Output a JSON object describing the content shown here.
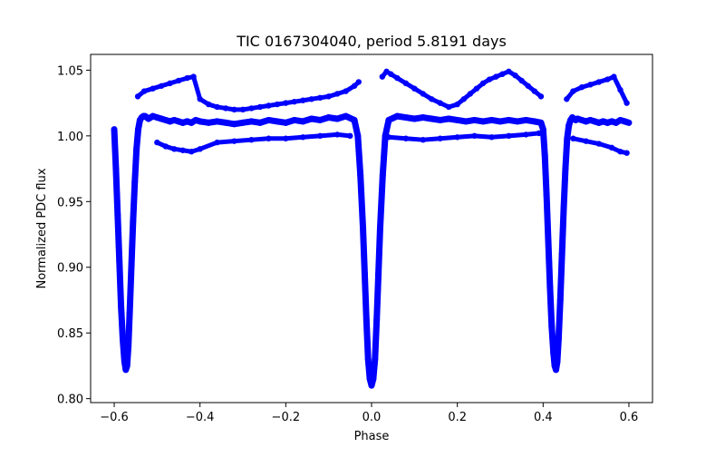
{
  "chart_data": {
    "type": "scatter",
    "title": "TIC 0167304040, period 5.8191 days",
    "xlabel": "Phase",
    "ylabel": "Normalized PDC flux",
    "xlim": [
      -0.655,
      0.655
    ],
    "ylim": [
      0.797,
      1.062
    ],
    "xticks": [
      -0.6,
      -0.4,
      -0.2,
      0.0,
      0.2,
      0.4,
      0.6
    ],
    "xtick_labels": [
      "−0.6",
      "−0.4",
      "−0.2",
      "0.0",
      "0.2",
      "0.4",
      "0.6"
    ],
    "yticks": [
      0.8,
      0.85,
      0.9,
      0.95,
      1.0,
      1.05
    ],
    "ytick_labels": [
      "0.80",
      "0.85",
      "0.90",
      "0.95",
      "1.00",
      "1.05"
    ],
    "grid": false,
    "marker_color": "#0000ff",
    "series": [
      {
        "x": [
          -0.6,
          -0.596,
          -0.592,
          -0.588,
          -0.584,
          -0.58,
          -0.576,
          -0.573,
          -0.57,
          -0.567,
          -0.564,
          -0.56,
          -0.556,
          -0.552,
          -0.548,
          -0.544,
          -0.54,
          -0.536,
          -0.532,
          -0.528,
          -0.524,
          -0.52,
          -0.51,
          -0.5,
          -0.49,
          -0.48,
          -0.47,
          -0.46,
          -0.45,
          -0.44,
          -0.43,
          -0.42,
          -0.41,
          -0.4,
          -0.38,
          -0.36,
          -0.34,
          -0.32,
          -0.3,
          -0.28,
          -0.26,
          -0.24,
          -0.22,
          -0.2,
          -0.18,
          -0.16,
          -0.14,
          -0.12,
          -0.1,
          -0.08,
          -0.06,
          -0.04,
          -0.032,
          -0.026,
          -0.02,
          -0.016,
          -0.012,
          -0.008,
          -0.004,
          0.0,
          0.004,
          0.008,
          0.012,
          0.016,
          0.02,
          0.026,
          0.032,
          0.04,
          0.06,
          0.08,
          0.1,
          0.12,
          0.14,
          0.16,
          0.18,
          0.2,
          0.22,
          0.24,
          0.26,
          0.28,
          0.3,
          0.32,
          0.34,
          0.36,
          0.38,
          0.395,
          0.4,
          0.404,
          0.408,
          0.412,
          0.416,
          0.42,
          0.424,
          0.427,
          0.43,
          0.433,
          0.436,
          0.44,
          0.444,
          0.448,
          0.452,
          0.456,
          0.46,
          0.464,
          0.468,
          0.472,
          0.476,
          0.48,
          0.49,
          0.5,
          0.51,
          0.52,
          0.53,
          0.54,
          0.55,
          0.56,
          0.57,
          0.58,
          0.59,
          0.6
        ],
        "y": [
          1.005,
          0.975,
          0.94,
          0.905,
          0.87,
          0.845,
          0.828,
          0.822,
          0.825,
          0.84,
          0.865,
          0.9,
          0.935,
          0.965,
          0.99,
          1.005,
          1.012,
          1.014,
          1.015,
          1.015,
          1.014,
          1.013,
          1.015,
          1.014,
          1.013,
          1.012,
          1.011,
          1.012,
          1.011,
          1.01,
          1.011,
          1.01,
          1.012,
          1.011,
          1.01,
          1.011,
          1.01,
          1.009,
          1.01,
          1.011,
          1.01,
          1.012,
          1.011,
          1.01,
          1.012,
          1.011,
          1.013,
          1.012,
          1.014,
          1.013,
          1.015,
          1.012,
          1.0,
          0.97,
          0.93,
          0.895,
          0.86,
          0.83,
          0.815,
          0.81,
          0.815,
          0.83,
          0.86,
          0.895,
          0.93,
          0.97,
          1.0,
          1.012,
          1.015,
          1.014,
          1.013,
          1.014,
          1.013,
          1.012,
          1.013,
          1.012,
          1.011,
          1.012,
          1.011,
          1.012,
          1.011,
          1.012,
          1.011,
          1.012,
          1.011,
          1.01,
          1.005,
          0.985,
          0.955,
          0.92,
          0.885,
          0.855,
          0.835,
          0.825,
          0.822,
          0.828,
          0.845,
          0.875,
          0.91,
          0.945,
          0.975,
          0.998,
          1.008,
          1.012,
          1.014,
          1.013,
          1.012,
          1.013,
          1.012,
          1.011,
          1.012,
          1.011,
          1.01,
          1.011,
          1.01,
          1.011,
          1.01,
          1.012,
          1.011,
          1.01
        ]
      },
      {
        "x": [
          -0.545,
          -0.53,
          -0.51,
          -0.49,
          -0.47,
          -0.45,
          -0.43,
          -0.415,
          -0.4,
          -0.38,
          -0.36,
          -0.34,
          -0.32,
          -0.3,
          -0.28,
          -0.26,
          -0.24,
          -0.22,
          -0.2,
          -0.18,
          -0.16,
          -0.14,
          -0.12,
          -0.1,
          -0.08,
          -0.06,
          -0.04,
          -0.03
        ],
        "y": [
          1.03,
          1.034,
          1.036,
          1.038,
          1.04,
          1.042,
          1.044,
          1.045,
          1.028,
          1.024,
          1.022,
          1.021,
          1.02,
          1.02,
          1.021,
          1.022,
          1.023,
          1.024,
          1.025,
          1.026,
          1.027,
          1.028,
          1.029,
          1.03,
          1.032,
          1.034,
          1.038,
          1.041
        ]
      },
      {
        "x": [
          0.025,
          0.035,
          0.045,
          0.06,
          0.08,
          0.1,
          0.12,
          0.14,
          0.16,
          0.18,
          0.2,
          0.215,
          0.23,
          0.245,
          0.26,
          0.275,
          0.29,
          0.305,
          0.32,
          0.335,
          0.35,
          0.365,
          0.38,
          0.395
        ],
        "y": [
          1.045,
          1.049,
          1.047,
          1.044,
          1.04,
          1.036,
          1.032,
          1.028,
          1.025,
          1.022,
          1.024,
          1.028,
          1.032,
          1.036,
          1.04,
          1.043,
          1.045,
          1.047,
          1.049,
          1.046,
          1.042,
          1.038,
          1.034,
          1.03
        ]
      },
      {
        "x": [
          0.455,
          0.47,
          0.49,
          0.51,
          0.53,
          0.55,
          0.565,
          0.58,
          0.595
        ],
        "y": [
          1.028,
          1.034,
          1.037,
          1.039,
          1.041,
          1.043,
          1.045,
          1.035,
          1.025
        ]
      },
      {
        "x": [
          -0.5,
          -0.48,
          -0.46,
          -0.44,
          -0.42,
          -0.4,
          -0.36,
          -0.32,
          -0.28,
          -0.24,
          -0.2,
          -0.16,
          -0.12,
          -0.08,
          -0.05
        ],
        "y": [
          0.995,
          0.992,
          0.99,
          0.989,
          0.988,
          0.99,
          0.995,
          0.996,
          0.997,
          0.998,
          0.998,
          0.999,
          1.0,
          1.001,
          1.0
        ]
      },
      {
        "x": [
          0.04,
          0.08,
          0.12,
          0.16,
          0.2,
          0.24,
          0.28,
          0.32,
          0.36,
          0.39
        ],
        "y": [
          0.999,
          0.998,
          0.997,
          0.998,
          0.999,
          1.0,
          0.999,
          1.0,
          1.001,
          1.002
        ]
      },
      {
        "x": [
          0.47,
          0.5,
          0.53,
          0.56,
          0.58,
          0.595
        ],
        "y": [
          0.998,
          0.996,
          0.994,
          0.991,
          0.988,
          0.987
        ]
      }
    ]
  }
}
